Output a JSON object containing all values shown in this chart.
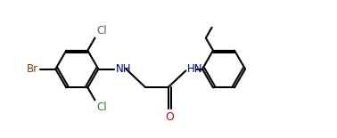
{
  "bg": "#ffffff",
  "lc": "#000000",
  "lw": 1.5,
  "ring_r": 0.62,
  "fig_w": 3.78,
  "fig_h": 1.55,
  "xlim": [
    0,
    9.5
  ],
  "ylim": [
    0.2,
    4.2
  ],
  "cl_color": "#3a7a3a",
  "br_color": "#8B4000",
  "nh_color": "#00008B",
  "o_color": "#cc0000",
  "font_size": 8.5
}
